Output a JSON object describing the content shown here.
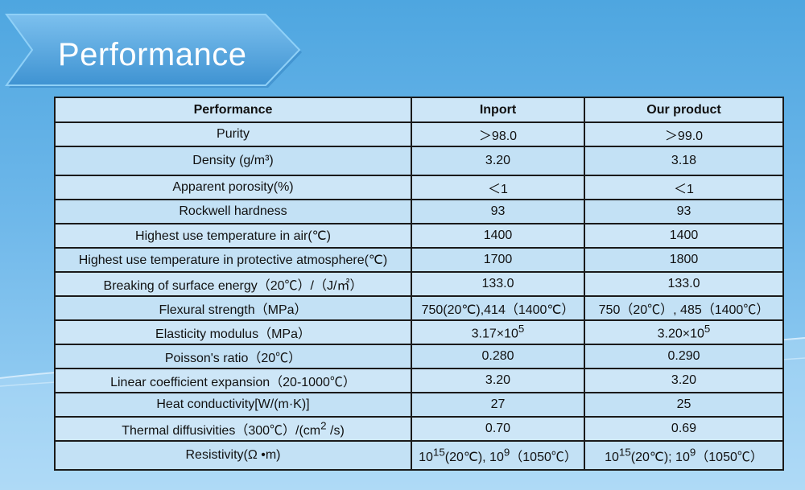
{
  "banner": {
    "title": "Performance"
  },
  "table": {
    "headers": [
      "Performance",
      "Inport",
      "Our product"
    ],
    "rows": [
      {
        "property": "Purity",
        "inport": "＞98.0",
        "ours": "＞99.0"
      },
      {
        "property": "Density (g/m³)",
        "inport": "3.20",
        "ours": "3.18"
      },
      {
        "property": "Apparent porosity(%)",
        "inport": "＜1",
        "ours": "＜1"
      },
      {
        "property": "Rockwell hardness",
        "inport": "93",
        "ours": "93"
      },
      {
        "property": "Highest use temperature in air(℃)",
        "inport": "1400",
        "ours": "1400"
      },
      {
        "property": "Highest use temperature in protective atmosphere(℃)",
        "inport": "1700",
        "ours": "1800"
      },
      {
        "property": "Breaking of surface energy（20℃）/（J/㎡）",
        "inport": "133.0",
        "ours": "133.0"
      },
      {
        "property": "Flexural strength（MPa）",
        "inport": "750(20℃),414（1400℃）",
        "ours": "750（20℃）, 485（1400℃）"
      },
      {
        "property": "Elasticity modulus（MPa）",
        "inport": {
          "base": "3.17×10",
          "sup": "5"
        },
        "ours": {
          "base": "3.20×10",
          "sup": "5"
        }
      },
      {
        "property": "Poisson's ratio（20℃）",
        "inport": "0.280",
        "ours": "0.290"
      },
      {
        "property": "Linear coefficient expansion（20-1000℃）",
        "inport": "3.20",
        "ours": "3.20"
      },
      {
        "property": "Heat conductivity[W/(m·K)]",
        "inport": "27",
        "ours": "25"
      },
      {
        "property": {
          "pre": "Thermal diffusivities（300℃）/(cm",
          "sup": "2",
          "post": " /s)"
        },
        "inport": "0.70",
        "ours": "0.69"
      },
      {
        "property": "Resistivity(Ω •m)",
        "inport": {
          "pre": "10",
          "sup": "15",
          "post": "(20℃), 10",
          "sup2": "9",
          "post2": "（1050℃）"
        },
        "ours": {
          "pre": "10",
          "sup": "15",
          "post": "(20℃); 10",
          "sup2": "9",
          "post2": "（1050℃）"
        }
      }
    ]
  },
  "colors": {
    "background_top": "#4ea6e0",
    "background_bottom": "#a6d6f5",
    "table_fill": "#cde6f7",
    "banner": "#4a9ed8"
  }
}
